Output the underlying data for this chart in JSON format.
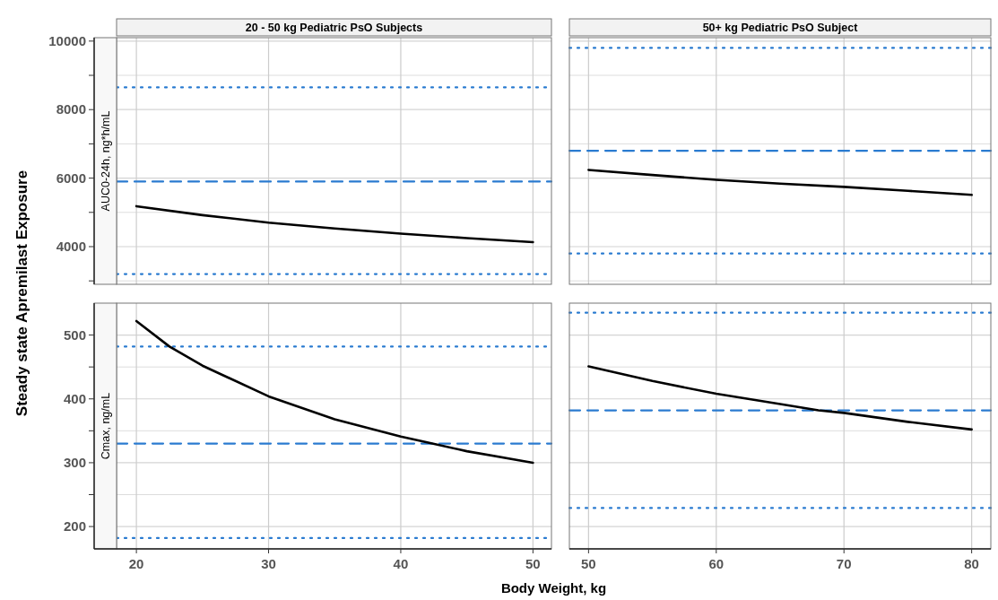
{
  "chart_data": [
    {
      "type": "line",
      "title": "20 - 50 kg Pediatric PsO Subjects",
      "ylabel": "Steady state Apremilast Exposure",
      "annotations": [
        "AUC0-24h, ng*h/mL"
      ],
      "xlim": [
        18.5,
        51.4
      ],
      "xticks": [
        20,
        30,
        40,
        50
      ],
      "ylim": [
        2900,
        10100
      ],
      "yticks": [
        {
          "value": 3000,
          "label": null
        },
        4000,
        {
          "value": 5000,
          "label": null
        },
        6000,
        {
          "value": 7000,
          "label": null
        },
        8000,
        {
          "value": 9000,
          "label": null
        },
        10000
      ],
      "tick_labels": "y",
      "grid": true,
      "line_style": "solid",
      "series": [
        {
          "color": "#000000",
          "x": [
            20,
            25,
            30,
            35,
            40,
            45,
            50
          ],
          "values": [
            5180,
            4920,
            4700,
            4530,
            4380,
            4250,
            4130
          ]
        }
      ],
      "ref_lines": [
        {
          "axis": "y",
          "value": 8650,
          "color": "#2a7bd0",
          "line_style": "dotted"
        },
        {
          "axis": "y",
          "value": 5900,
          "color": "#2a7bd0",
          "line_style": "dashed"
        },
        {
          "axis": "y",
          "value": 3200,
          "color": "#2a7bd0",
          "line_style": "dotted"
        }
      ]
    },
    {
      "type": "line",
      "title": "50+ kg Pediatric PsO Subject",
      "xlim": [
        48.5,
        81.5
      ],
      "xticks": [
        50,
        60,
        70,
        80
      ],
      "ylim": [
        2900,
        10100
      ],
      "yticks": [
        {
          "value": 3000,
          "label": null
        },
        4000,
        {
          "value": 5000,
          "label": null
        },
        6000,
        {
          "value": 7000,
          "label": null
        },
        8000,
        {
          "value": 9000,
          "label": null
        },
        10000
      ],
      "tick_labels": false,
      "grid": true,
      "line_style": "solid",
      "series": [
        {
          "color": "#000000",
          "x": [
            50,
            55,
            60,
            65,
            70,
            75,
            80
          ],
          "values": [
            6240,
            6090,
            5950,
            5840,
            5745,
            5630,
            5510
          ]
        }
      ],
      "ref_lines": [
        {
          "axis": "y",
          "value": 9800,
          "color": "#2a7bd0",
          "line_style": "dotted"
        },
        {
          "axis": "y",
          "value": 6800,
          "color": "#2a7bd0",
          "line_style": "dashed"
        },
        {
          "axis": "y",
          "value": 3800,
          "color": "#2a7bd0",
          "line_style": "dotted"
        }
      ]
    },
    {
      "type": "line",
      "xlabel": "Body Weight, kg",
      "annotations": [
        "Cmax, ng/mL"
      ],
      "xlim": [
        18.5,
        51.4
      ],
      "xticks": [
        20,
        30,
        40,
        50
      ],
      "ylim": [
        165,
        550
      ],
      "yticks": [
        200,
        {
          "value": 250,
          "label": null
        },
        300,
        {
          "value": 350,
          "label": null
        },
        400,
        {
          "value": 450,
          "label": null
        },
        500
      ],
      "grid": true,
      "line_style": "solid",
      "series": [
        {
          "color": "#000000",
          "x": [
            20,
            22.5,
            25,
            30,
            35,
            40,
            42,
            45,
            50
          ],
          "values": [
            522,
            482,
            452,
            404,
            368,
            341,
            332,
            318,
            300
          ]
        }
      ],
      "ref_lines": [
        {
          "axis": "y",
          "value": 482,
          "color": "#2a7bd0",
          "line_style": "dotted"
        },
        {
          "axis": "y",
          "value": 330,
          "color": "#2a7bd0",
          "line_style": "dashed"
        },
        {
          "axis": "y",
          "value": 182,
          "color": "#2a7bd0",
          "line_style": "dotted"
        }
      ]
    },
    {
      "type": "line",
      "xlim": [
        48.5,
        81.5
      ],
      "xticks": [
        50,
        60,
        70,
        80
      ],
      "ylim": [
        165,
        550
      ],
      "yticks": [
        200,
        {
          "value": 250,
          "label": null
        },
        300,
        {
          "value": 350,
          "label": null
        },
        400,
        {
          "value": 450,
          "label": null
        },
        500
      ],
      "tick_labels": "x",
      "grid": true,
      "line_style": "solid",
      "series": [
        {
          "color": "#000000",
          "x": [
            50,
            55,
            60,
            65,
            68,
            70,
            75,
            80
          ],
          "values": [
            451,
            428,
            408,
            392,
            382,
            378,
            364,
            352
          ]
        }
      ],
      "ref_lines": [
        {
          "axis": "y",
          "value": 535,
          "color": "#2a7bd0",
          "line_style": "dotted"
        },
        {
          "axis": "y",
          "value": 382,
          "color": "#2a7bd0",
          "line_style": "dashed"
        },
        {
          "axis": "y",
          "value": 229,
          "color": "#2a7bd0",
          "line_style": "dotted"
        }
      ]
    }
  ]
}
